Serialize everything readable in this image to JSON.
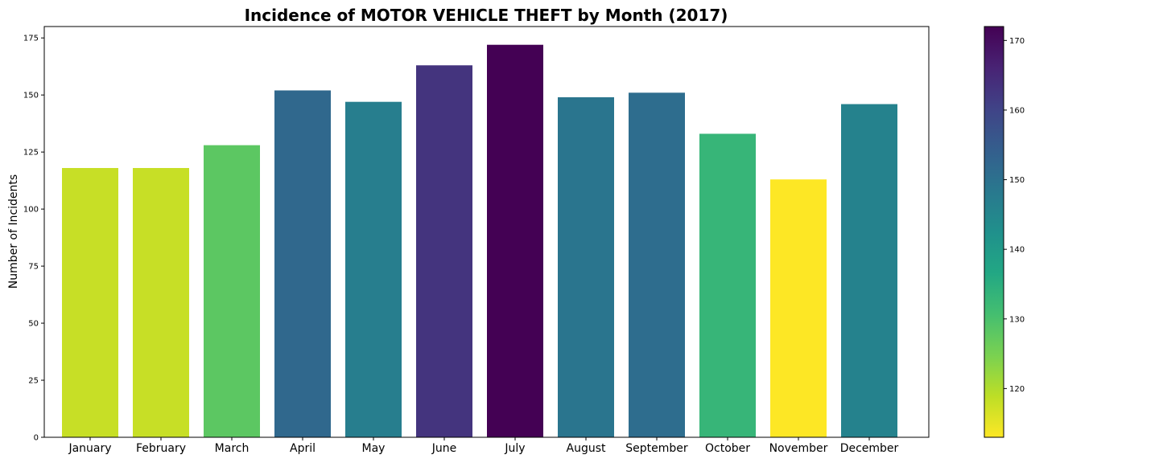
{
  "chart_data": {
    "type": "bar",
    "title": "Incidence of MOTOR VEHICLE THEFT by Month (2017)",
    "xlabel": "",
    "ylabel": "Number of Incidents",
    "categories": [
      "January",
      "February",
      "March",
      "April",
      "May",
      "June",
      "July",
      "August",
      "September",
      "October",
      "November",
      "December"
    ],
    "values": [
      118,
      118,
      128,
      152,
      147,
      163,
      172,
      149,
      151,
      133,
      113,
      146
    ],
    "ylim": [
      0,
      180
    ],
    "yticks": [
      0,
      25,
      50,
      75,
      100,
      125,
      150,
      175
    ],
    "colormap": "viridis",
    "colorbar": {
      "range": [
        113,
        172
      ],
      "ticks": [
        120,
        130,
        140,
        150,
        160,
        170
      ]
    },
    "grid": false,
    "legend": "none"
  }
}
